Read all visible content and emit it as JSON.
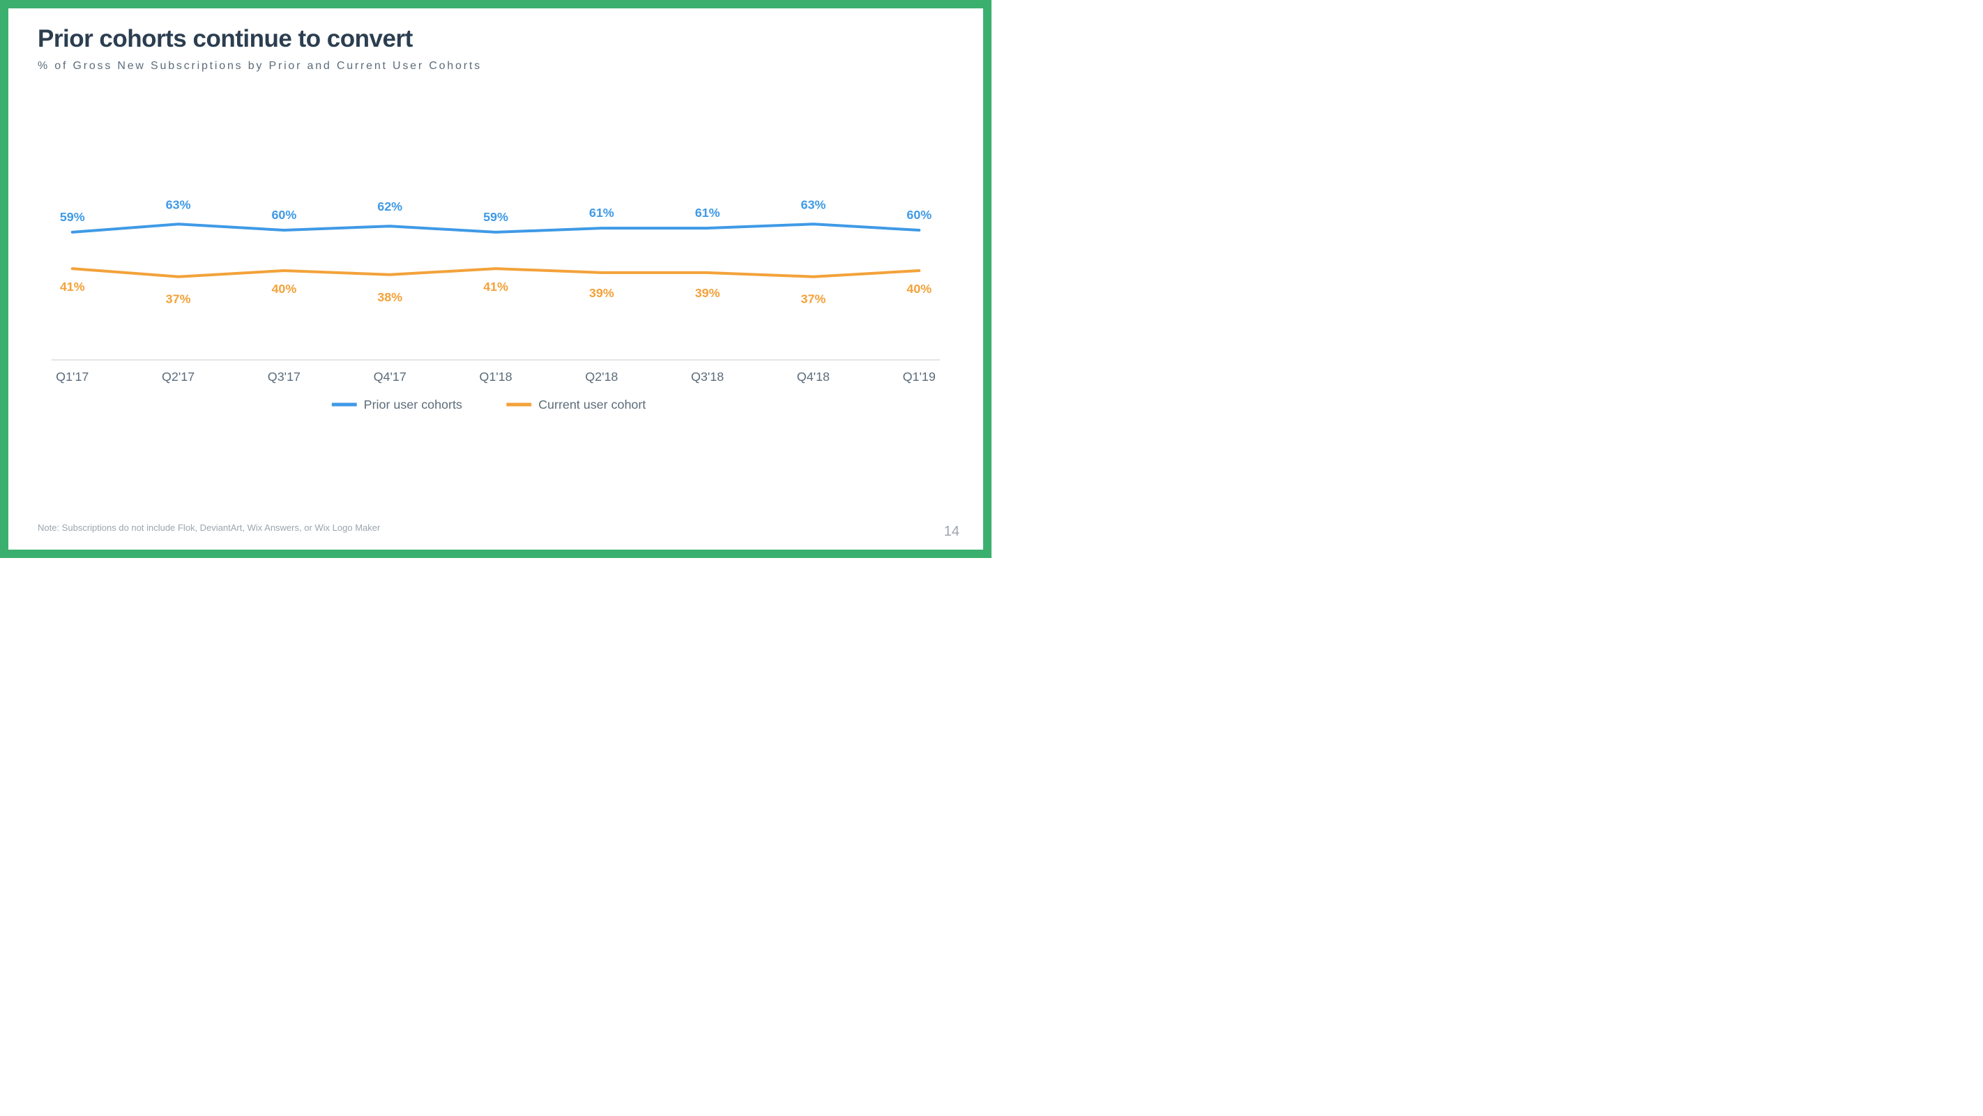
{
  "slide": {
    "title": "Prior cohorts continue to convert",
    "subtitle": "% of Gross New Subscriptions by Prior and Current User Cohorts",
    "note": "Note: Subscriptions do not include Flok, DeviantArt, Wix Answers, or Wix Logo Maker",
    "page_number": "14",
    "border_color": "#3bb06e",
    "background_color": "#ffffff"
  },
  "chart": {
    "type": "line",
    "categories": [
      "Q1'17",
      "Q2'17",
      "Q3'17",
      "Q4'17",
      "Q1'18",
      "Q2'18",
      "Q3'18",
      "Q4'18",
      "Q1'19"
    ],
    "ylim": [
      0,
      100
    ],
    "axis_line_color": "#c9c9c9",
    "x_label_color": "#5c6c7a",
    "line_width": 4,
    "label_fontsize": 18,
    "series": [
      {
        "name": "Prior user cohorts",
        "color": "#3f9ae6",
        "values": [
          59,
          63,
          60,
          62,
          59,
          61,
          61,
          63,
          60
        ],
        "labels": [
          "59%",
          "63%",
          "60%",
          "62%",
          "59%",
          "61%",
          "61%",
          "63%",
          "60%"
        ],
        "label_offsets_y": [
          0,
          -6,
          0,
          -6,
          0,
          0,
          0,
          -6,
          0
        ]
      },
      {
        "name": "Current user cohort",
        "color": "#f3a23a",
        "values": [
          41,
          37,
          40,
          38,
          41,
          39,
          39,
          37,
          40
        ],
        "labels": [
          "41%",
          "37%",
          "40%",
          "38%",
          "41%",
          "39%",
          "39%",
          "37%",
          "40%"
        ],
        "label_offsets_y": [
          0,
          6,
          0,
          6,
          0,
          3,
          3,
          6,
          0
        ]
      }
    ],
    "legend": {
      "color": "#5c6c7a",
      "swatch_width": 36
    }
  }
}
